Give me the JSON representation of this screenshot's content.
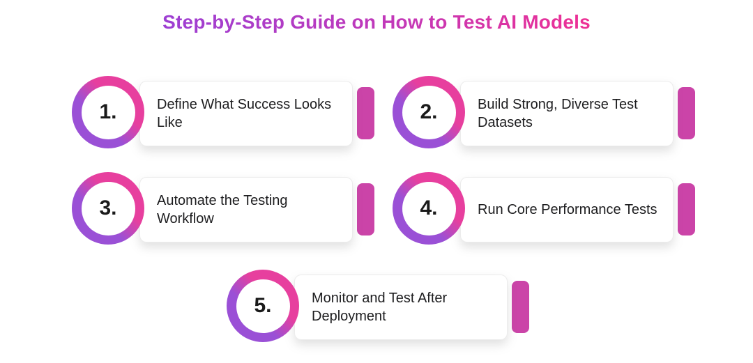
{
  "title": "Step-by-Step Guide on How to Test AI Models",
  "colors": {
    "background": "#ffffff",
    "title_gradient_start": "#9d3fd3",
    "title_gradient_end": "#ee3094",
    "ring_purple": "#9a50d6",
    "ring_pink": "#e73f9e",
    "accent_tab_pink": "#cb44a8",
    "card_text": "#1d1d1f"
  },
  "steps": [
    {
      "number": "1.",
      "label": "Define What Success Looks Like"
    },
    {
      "number": "2.",
      "label": "Build Strong, Diverse Test Datasets"
    },
    {
      "number": "3.",
      "label": "Automate the Testing Workflow"
    },
    {
      "number": "4.",
      "label": "Run Core Performance Tests"
    },
    {
      "number": "5.",
      "label": "Monitor and Test After Deployment"
    }
  ]
}
